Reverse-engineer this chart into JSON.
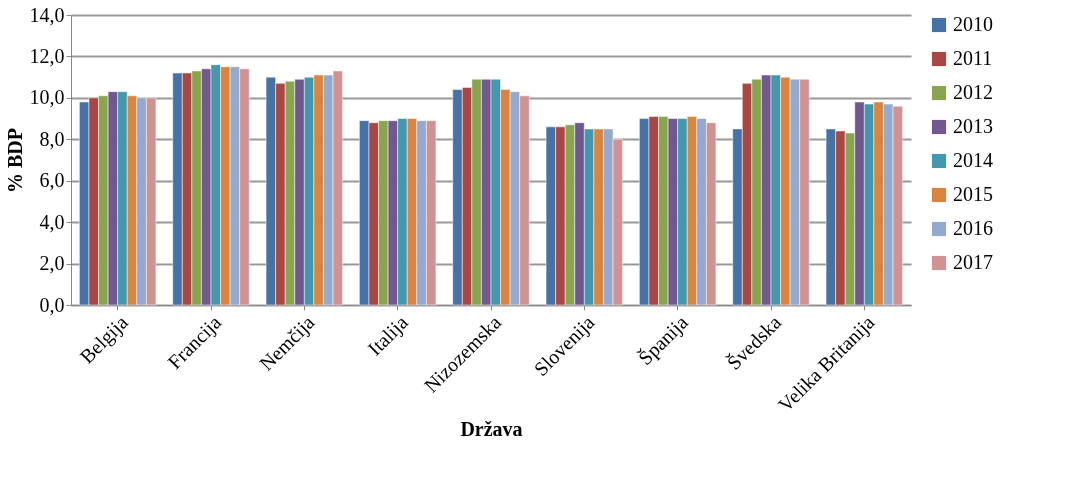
{
  "chart_data": {
    "type": "bar",
    "xlabel": "Država",
    "ylabel": "% BDP",
    "categories": [
      "Belgija",
      "Francija",
      "Nemčija",
      "Italija",
      "Nizozemska",
      "Slovenija",
      "Španija",
      "Švedska",
      "Velika Britanija"
    ],
    "series": [
      {
        "name": "2010",
        "color": "#4572a7",
        "values": [
          9.8,
          11.2,
          11.0,
          8.9,
          10.4,
          8.6,
          9.0,
          8.5,
          8.5
        ]
      },
      {
        "name": "2011",
        "color": "#aa4643",
        "values": [
          10.0,
          11.2,
          10.7,
          8.8,
          10.5,
          8.6,
          9.1,
          10.7,
          8.4
        ]
      },
      {
        "name": "2012",
        "color": "#89a54e",
        "values": [
          10.1,
          11.3,
          10.8,
          8.9,
          10.9,
          8.7,
          9.1,
          10.9,
          8.3
        ]
      },
      {
        "name": "2013",
        "color": "#71588f",
        "values": [
          10.3,
          11.4,
          10.9,
          8.9,
          10.9,
          8.8,
          9.0,
          11.1,
          9.8
        ]
      },
      {
        "name": "2014",
        "color": "#4198af",
        "values": [
          10.3,
          11.6,
          11.0,
          9.0,
          10.9,
          8.5,
          9.0,
          11.1,
          9.7
        ]
      },
      {
        "name": "2015",
        "color": "#db843d",
        "values": [
          10.1,
          11.5,
          11.1,
          9.0,
          10.4,
          8.5,
          9.1,
          11.0,
          9.8
        ]
      },
      {
        "name": "2016",
        "color": "#93a9cf",
        "values": [
          10.0,
          11.5,
          11.1,
          8.9,
          10.3,
          8.5,
          9.0,
          10.9,
          9.7
        ]
      },
      {
        "name": "2017",
        "color": "#d19392",
        "values": [
          10.0,
          11.4,
          11.3,
          8.9,
          10.1,
          8.0,
          8.8,
          10.9,
          9.6
        ]
      }
    ],
    "ylim": [
      0,
      14
    ],
    "yticks": [
      {
        "value": 0,
        "label": "0,0"
      },
      {
        "value": 2,
        "label": "2,0"
      },
      {
        "value": 4,
        "label": "4,0"
      },
      {
        "value": 6,
        "label": "6,0"
      },
      {
        "value": 8,
        "label": "8,0"
      },
      {
        "value": 10,
        "label": "10,0"
      },
      {
        "value": 12,
        "label": "12,0"
      },
      {
        "value": 14,
        "label": "14,0"
      }
    ],
    "grid": "y",
    "legend": "right"
  }
}
